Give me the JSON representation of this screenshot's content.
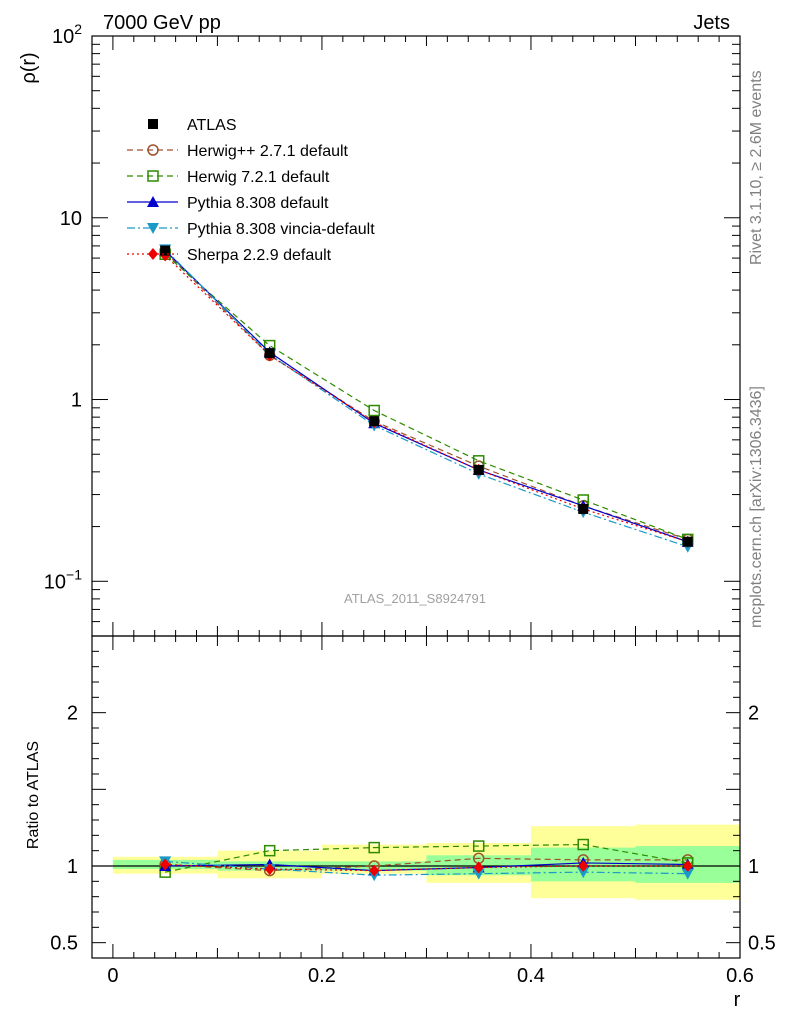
{
  "header": {
    "left": "7000 GeV pp",
    "right": "Jets"
  },
  "side_labels": {
    "rivet": "Rivet 3.1.10, ≥ 2.6M events",
    "source": "mcplots.cern.ch [arXiv:1306.3436]"
  },
  "chart_data": [
    {
      "type": "line",
      "panel": "main",
      "ylabel": "ρ(r)",
      "yscale": "log",
      "ylim": [
        0.05,
        100
      ],
      "xlim": [
        -0.02,
        0.6
      ],
      "yticks": [
        {
          "value": 0.1,
          "base": "10",
          "exp": "−1"
        },
        {
          "value": 1,
          "label": "1"
        },
        {
          "value": 10,
          "label": "10"
        },
        {
          "value": 100,
          "base": "10",
          "exp": "2"
        }
      ],
      "watermark": "ATLAS_2011_S8924791",
      "x": [
        0.05,
        0.15,
        0.25,
        0.35,
        0.45,
        0.55
      ],
      "series": [
        {
          "name": "ATLAS",
          "color": "#000000",
          "marker": "square-filled",
          "line": "none",
          "values": [
            6.6,
            1.8,
            0.76,
            0.41,
            0.25,
            0.165
          ]
        },
        {
          "name": "Herwig++ 2.7.1 default",
          "color": "#a0522d",
          "marker": "circle-open",
          "line": "dashed",
          "values": [
            6.5,
            1.75,
            0.76,
            0.43,
            0.26,
            0.17
          ]
        },
        {
          "name": "Herwig 7.2.1 default",
          "color": "#2e8b00",
          "marker": "square-open",
          "line": "dashed",
          "values": [
            6.3,
            1.98,
            0.87,
            0.46,
            0.28,
            0.17
          ]
        },
        {
          "name": "Pythia 8.308 default",
          "color": "#0000cc",
          "marker": "triangle-up",
          "line": "solid",
          "values": [
            6.6,
            1.82,
            0.74,
            0.41,
            0.26,
            0.165
          ]
        },
        {
          "name": "Pythia 8.308 vincia-default",
          "color": "#1a9ac9",
          "marker": "triangle-down",
          "line": "dashdot",
          "values": [
            6.7,
            1.77,
            0.72,
            0.39,
            0.24,
            0.155
          ]
        },
        {
          "name": "Sherpa 2.2.9 default",
          "color": "#ee0000",
          "marker": "diamond",
          "line": "dotted",
          "values": [
            6.2,
            1.75,
            0.75,
            0.41,
            0.25,
            0.165
          ]
        }
      ]
    },
    {
      "type": "line",
      "panel": "ratio",
      "ylabel": "Ratio to ATLAS",
      "xlabel": "r",
      "ylim": [
        0.4,
        2.5
      ],
      "xlim": [
        -0.02,
        0.6
      ],
      "xticks": [
        {
          "value": 0,
          "label": "0"
        },
        {
          "value": 0.2,
          "label": "0.2"
        },
        {
          "value": 0.4,
          "label": "0.4"
        },
        {
          "value": 0.6,
          "label": "0.6"
        }
      ],
      "yticks": [
        {
          "value": 0.5,
          "label": "0.5"
        },
        {
          "value": 1,
          "label": "1"
        },
        {
          "value": 2,
          "label": "2"
        }
      ],
      "uncertainty_bands": [
        {
          "x": [
            0.0,
            0.1
          ],
          "inner": [
            0.98,
            1.04
          ],
          "outer": [
            0.95,
            1.06
          ]
        },
        {
          "x": [
            0.1,
            0.2
          ],
          "inner": [
            0.97,
            1.03
          ],
          "outer": [
            0.92,
            1.1
          ]
        },
        {
          "x": [
            0.2,
            0.3
          ],
          "inner": [
            0.97,
            1.03
          ],
          "outer": [
            0.95,
            1.14
          ]
        },
        {
          "x": [
            0.3,
            0.4
          ],
          "inner": [
            0.94,
            1.07
          ],
          "outer": [
            0.89,
            1.15
          ]
        },
        {
          "x": [
            0.4,
            0.5
          ],
          "inner": [
            0.9,
            1.12
          ],
          "outer": [
            0.79,
            1.26
          ]
        },
        {
          "x": [
            0.5,
            0.6
          ],
          "inner": [
            0.89,
            1.13
          ],
          "outer": [
            0.78,
            1.27
          ]
        }
      ],
      "band_colors": {
        "inner": "#99ff99",
        "outer": "#ffff99"
      },
      "x": [
        0.05,
        0.15,
        0.25,
        0.35,
        0.45,
        0.55
      ],
      "series": [
        {
          "name": "Herwig++ 2.7.1 default",
          "color": "#a0522d",
          "marker": "circle-open",
          "line": "dashed",
          "values": [
            1.01,
            0.97,
            1.0,
            1.05,
            1.04,
            1.04
          ]
        },
        {
          "name": "Herwig 7.2.1 default",
          "color": "#2e8b00",
          "marker": "square-open",
          "line": "dashed",
          "values": [
            0.96,
            1.1,
            1.12,
            1.13,
            1.14,
            1.02
          ]
        },
        {
          "name": "Pythia 8.308 default",
          "color": "#0000cc",
          "marker": "triangle-up",
          "line": "solid",
          "values": [
            1.0,
            1.01,
            0.97,
            0.99,
            1.02,
            1.01
          ]
        },
        {
          "name": "Pythia 8.308 vincia-default",
          "color": "#1a9ac9",
          "marker": "triangle-down",
          "line": "dashdot",
          "values": [
            1.03,
            0.98,
            0.94,
            0.95,
            0.96,
            0.95
          ]
        },
        {
          "name": "Sherpa 2.2.9 default",
          "color": "#ee0000",
          "marker": "diamond",
          "line": "dotted",
          "values": [
            1.01,
            0.98,
            0.97,
            0.99,
            1.0,
            1.0
          ]
        }
      ]
    }
  ]
}
